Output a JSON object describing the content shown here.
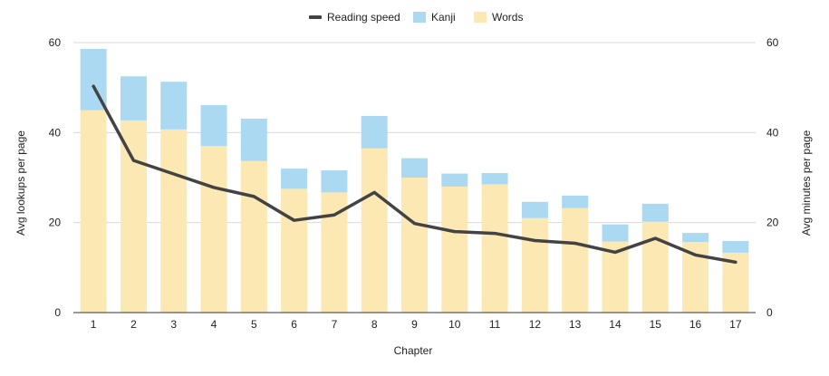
{
  "chart_data": {
    "type": "bar",
    "stacked": true,
    "title": "",
    "xlabel": "Chapter",
    "ylabel_left": "Avg lookups per page",
    "ylabel_right": "Avg minutes per page",
    "categories": [
      "1",
      "2",
      "3",
      "4",
      "5",
      "6",
      "7",
      "8",
      "9",
      "10",
      "11",
      "12",
      "13",
      "14",
      "15",
      "16",
      "17"
    ],
    "ylim_left": [
      0,
      60
    ],
    "ylim_right": [
      0,
      60
    ],
    "yticks_left": [
      0,
      20,
      40,
      60
    ],
    "yticks_right": [
      0,
      20,
      40,
      60
    ],
    "grid": "horizontal",
    "legend_position": "top",
    "series": [
      {
        "name": "Words",
        "kind": "bar",
        "axis": "left",
        "color": "#fce8b2",
        "values": [
          45,
          42.7,
          40.7,
          37,
          33.7,
          27.5,
          26.7,
          36.5,
          30,
          28,
          28.5,
          21,
          23.2,
          15.8,
          20.2,
          15.7,
          13.3
        ]
      },
      {
        "name": "Kanji",
        "kind": "bar",
        "axis": "left",
        "color": "#abd9f2",
        "values": [
          13.6,
          9.8,
          10.6,
          9.1,
          9.4,
          4.5,
          4.9,
          7.2,
          4.3,
          2.9,
          2.5,
          3.6,
          2.8,
          3.8,
          4,
          2,
          2.6
        ]
      },
      {
        "name": "Reading speed",
        "kind": "line",
        "axis": "right",
        "color": "#434343",
        "values": [
          50.3,
          33.8,
          30.8,
          27.8,
          25.8,
          20.5,
          21.7,
          26.7,
          19.8,
          18,
          17.6,
          16,
          15.4,
          13.4,
          16.5,
          12.8,
          11.2
        ]
      }
    ]
  }
}
